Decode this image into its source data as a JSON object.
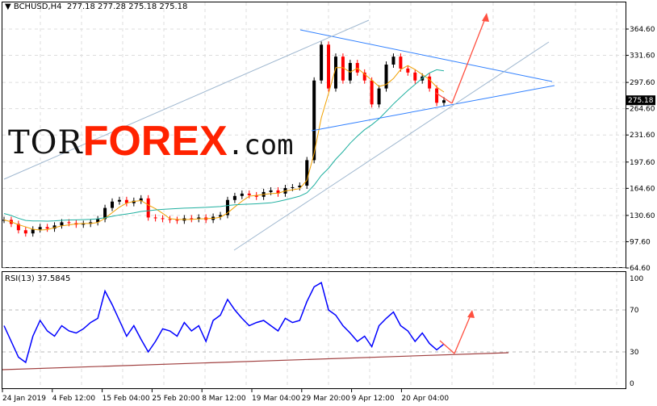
{
  "header": {
    "symbol_label": "BCHUSD,H4",
    "ohlc": "277.18 277.28 275.18 275.18"
  },
  "rsi": {
    "label": "RSI(13) 37.5845"
  },
  "logo": {
    "part1": "TOR",
    "part2": "FOREX",
    "part3": ".com"
  },
  "price_axis": [
    "364.60",
    "331.60",
    "297.60",
    "264.60",
    "231.60",
    "197.60",
    "164.60",
    "130.60",
    "97.60",
    "64.60"
  ],
  "current_price": "275.18",
  "rsi_axis": [
    "100",
    "70",
    "30",
    "0"
  ],
  "time_axis": [
    "24 Jan 2019",
    "4 Feb 12:00",
    "15 Feb 04:00",
    "25 Feb 20:00",
    "8 Mar 12:00",
    "19 Mar 04:00",
    "29 Mar 20:00",
    "9 Apr 12:00",
    "20 Apr 04:00"
  ],
  "colors": {
    "bull": "#000000",
    "bear": "#ff0000",
    "ma_fast": "#f0a000",
    "ma_slow": "#20b0a0",
    "rsi": "#0000ff",
    "trendline": "#3080ff",
    "arrow": "#ff5040"
  },
  "chart_data": {
    "type": "candlestick",
    "closes": [
      125,
      120,
      112,
      108,
      113,
      116,
      114,
      118,
      122,
      121,
      119,
      120,
      122,
      126,
      140,
      148,
      150,
      146,
      149,
      152,
      128,
      127,
      126,
      125,
      124,
      127,
      126,
      128,
      125,
      129,
      131,
      150,
      155,
      158,
      156,
      154,
      160,
      162,
      158,
      165,
      166,
      168,
      200,
      300,
      345,
      290,
      330,
      300,
      322,
      310,
      300,
      270,
      290,
      320,
      330,
      315,
      310,
      300,
      305,
      290,
      272,
      275.18
    ],
    "rsi": [
      55,
      40,
      25,
      20,
      45,
      60,
      50,
      45,
      55,
      50,
      48,
      52,
      58,
      62,
      88,
      75,
      60,
      45,
      55,
      42,
      30,
      40,
      52,
      50,
      45,
      58,
      50,
      55,
      40,
      60,
      65,
      80,
      70,
      62,
      55,
      58,
      60,
      55,
      50,
      62,
      58,
      60,
      78,
      92,
      96,
      70,
      65,
      55,
      48,
      40,
      45,
      35,
      55,
      62,
      68,
      55,
      50,
      40,
      48,
      38,
      32,
      37.58
    ]
  }
}
